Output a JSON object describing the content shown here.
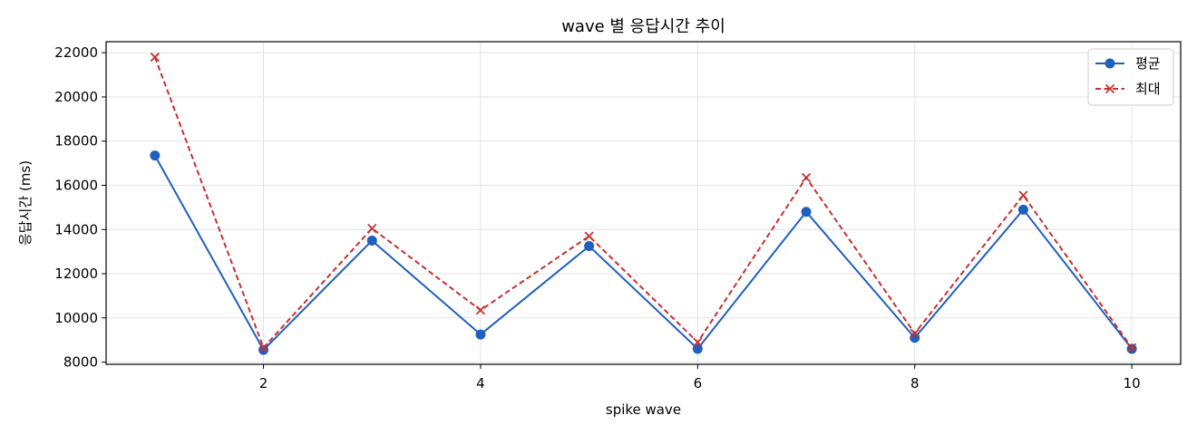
{
  "chart_data": {
    "type": "line",
    "title": "wave 별 응답시간 추이",
    "xlabel": "spike wave",
    "ylabel": "응답시간 (ms)",
    "x": [
      1,
      2,
      3,
      4,
      5,
      6,
      7,
      8,
      9,
      10
    ],
    "xlim": [
      0.55,
      10.45
    ],
    "ylim": [
      7900,
      22500
    ],
    "xticks": [
      2,
      4,
      6,
      8,
      10
    ],
    "yticks": [
      8000,
      10000,
      12000,
      14000,
      16000,
      18000,
      20000,
      22000
    ],
    "grid": true,
    "legend_position": "top-right",
    "series": [
      {
        "name": "평균",
        "color": "#1f5fbf",
        "line_style": "solid",
        "marker": "circle",
        "values": [
          17350,
          8550,
          13500,
          9250,
          13250,
          8600,
          14800,
          9100,
          14900,
          8600
        ]
      },
      {
        "name": "최대",
        "color": "#c8302f",
        "line_style": "dashed",
        "marker": "x",
        "values": [
          21800,
          8650,
          14050,
          10350,
          13700,
          8900,
          16350,
          9300,
          15550,
          8650
        ]
      }
    ]
  }
}
